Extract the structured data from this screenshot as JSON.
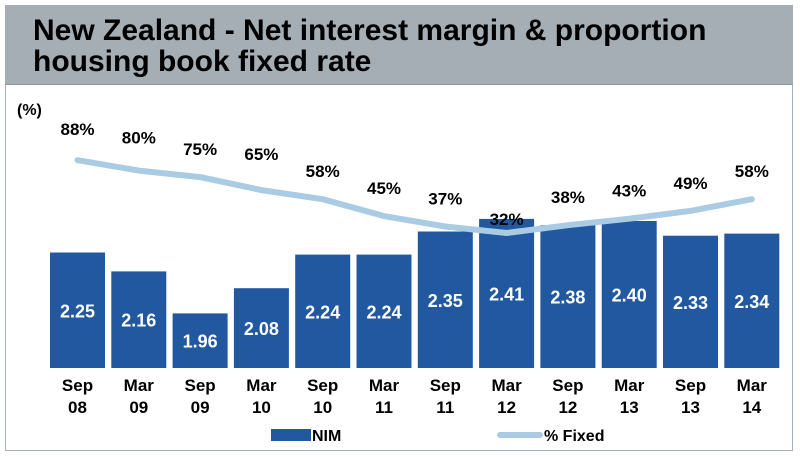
{
  "chart_data": {
    "type": "bar",
    "title": "New Zealand - Net interest margin & proportion housing book fixed rate",
    "ylabel": "(%)",
    "xlabel": "",
    "categories": [
      [
        "Sep",
        "08"
      ],
      [
        "Mar",
        "09"
      ],
      [
        "Sep",
        "09"
      ],
      [
        "Mar",
        "10"
      ],
      [
        "Sep",
        "10"
      ],
      [
        "Mar",
        "11"
      ],
      [
        "Sep",
        "11"
      ],
      [
        "Mar",
        "12"
      ],
      [
        "Sep",
        "12"
      ],
      [
        "Mar",
        "13"
      ],
      [
        "Sep",
        "13"
      ],
      [
        "Mar",
        "14"
      ]
    ],
    "series": [
      {
        "name": "NIM",
        "type": "bar",
        "color": "#2158a0",
        "values": [
          2.25,
          2.16,
          1.96,
          2.08,
          2.24,
          2.24,
          2.35,
          2.41,
          2.38,
          2.4,
          2.33,
          2.34
        ],
        "labels": [
          "2.25",
          "2.16",
          "1.96",
          "2.08",
          "2.24",
          "2.24",
          "2.35",
          "2.41",
          "2.38",
          "2.40",
          "2.33",
          "2.34"
        ]
      },
      {
        "name": "% Fixed",
        "type": "line",
        "color": "#a9cbe3",
        "values": [
          88,
          80,
          75,
          65,
          58,
          45,
          37,
          32,
          38,
          43,
          49,
          58
        ],
        "labels": [
          "88%",
          "80%",
          "75%",
          "65%",
          "58%",
          "45%",
          "37%",
          "32%",
          "38%",
          "43%",
          "49%",
          "58%"
        ]
      }
    ],
    "bar_axis_range": [
      1.7,
      2.6
    ],
    "line_axis_range": [
      0,
      100
    ],
    "grid": false,
    "legend_position": "bottom"
  },
  "colors": {
    "title_bar": "#a5adb5",
    "bar": "#2158a0",
    "line": "#a9cbe3"
  }
}
